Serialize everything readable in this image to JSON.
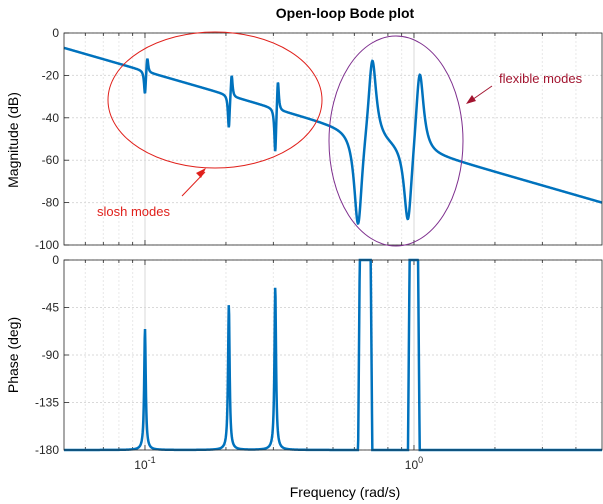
{
  "chart_data": {
    "type": "line",
    "title": "Open-loop Bode plot",
    "xlabel": "Frequency  (rad/s)",
    "xscale": "log",
    "xlim": [
      0.05,
      5
    ],
    "xticks": [
      {
        "value": 0.1,
        "base": "10",
        "exp": "-1"
      },
      {
        "value": 1,
        "base": "10",
        "exp": "0"
      }
    ],
    "grid": true,
    "line_color": "#0072BD",
    "magnitude": {
      "ylabel": "Magnitude (dB)",
      "ylim": [
        -100,
        0
      ],
      "yticks": [
        0,
        -20,
        -40,
        -60,
        -80,
        -100
      ],
      "low_freq_asymptote": {
        "x": [
          0.05,
          5
        ],
        "y": [
          -7,
          -80
        ]
      },
      "slosh_modes": [
        {
          "zero": 0.1,
          "pole": 0.102,
          "peak_db": -10,
          "notch_db": -30
        },
        {
          "zero": 0.205,
          "pole": 0.21,
          "peak_db": -18,
          "notch_db": -46
        },
        {
          "zero": 0.305,
          "pole": 0.312,
          "peak_db": -20,
          "notch_db": -58
        }
      ],
      "flexible_modes": [
        {
          "antiresonance": 0.62,
          "resonance": 0.7,
          "notch_db": -94,
          "peak_db": -8
        },
        {
          "antiresonance": 0.95,
          "resonance": 1.05,
          "notch_db": -94,
          "peak_db": -14
        }
      ]
    },
    "phase": {
      "ylabel": "Phase (deg)",
      "ylim": [
        -180,
        0
      ],
      "yticks": [
        0,
        -45,
        -90,
        -135,
        -180
      ],
      "baseline_deg": -180,
      "spikes": [
        {
          "freq": 0.1,
          "peak_deg": -65
        },
        {
          "freq": 0.205,
          "peak_deg": -42
        },
        {
          "freq": 0.305,
          "peak_deg": -25
        }
      ],
      "plateaus": [
        {
          "from": 0.62,
          "to": 0.7,
          "level_deg": 0
        },
        {
          "from": 0.95,
          "to": 1.05,
          "level_deg": 0
        }
      ]
    },
    "annotations": [
      {
        "text": "slosh modes",
        "color": "#e0201b",
        "target": "slosh-modes-ellipse"
      },
      {
        "text": "flexible modes",
        "color": "#a2142f",
        "target": "flexible-modes-ellipse"
      }
    ]
  }
}
